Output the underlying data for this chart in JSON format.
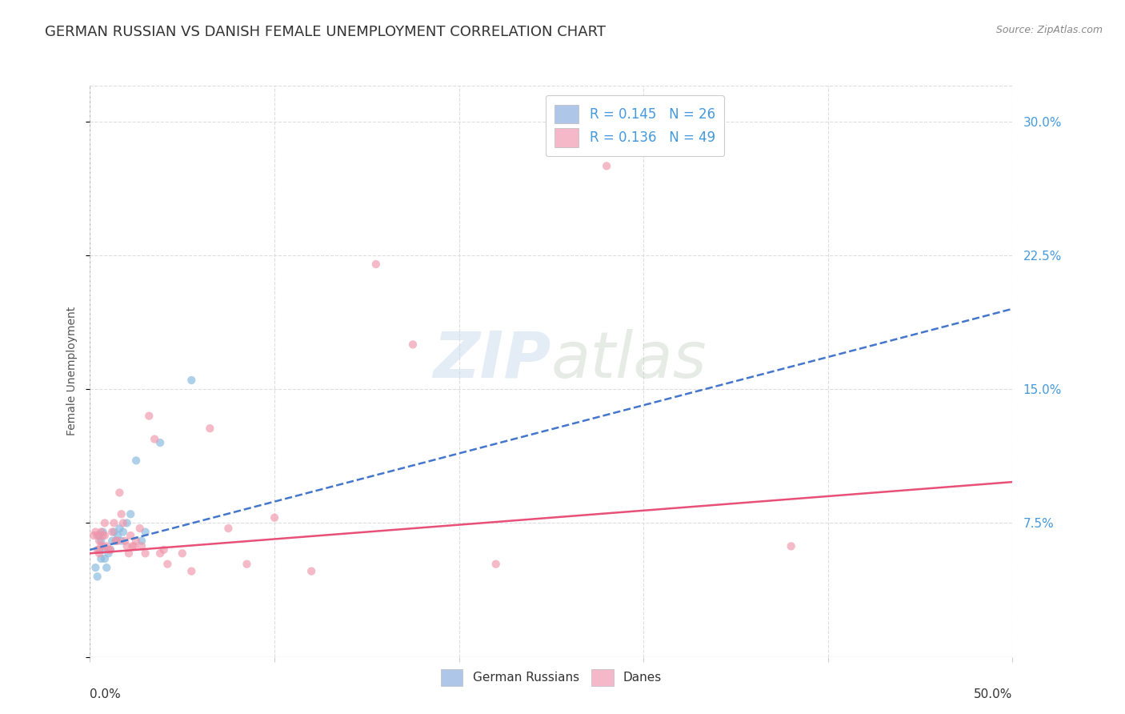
{
  "title": "GERMAN RUSSIAN VS DANISH FEMALE UNEMPLOYMENT CORRELATION CHART",
  "source": "Source: ZipAtlas.com",
  "ylabel": "Female Unemployment",
  "watermark": "ZIPatlas",
  "legend_entries": [
    {
      "label": "R = 0.145   N = 26",
      "color": "#aec6e8"
    },
    {
      "label": "R = 0.136   N = 49",
      "color": "#f4b8c8"
    }
  ],
  "legend_bottom": [
    {
      "label": "German Russians",
      "color": "#aec6e8"
    },
    {
      "label": "Danes",
      "color": "#f4b8c8"
    }
  ],
  "german_russians_x": [
    0.003,
    0.004,
    0.005,
    0.005,
    0.006,
    0.006,
    0.007,
    0.007,
    0.008,
    0.009,
    0.01,
    0.011,
    0.012,
    0.013,
    0.014,
    0.015,
    0.016,
    0.017,
    0.018,
    0.02,
    0.022,
    0.025,
    0.028,
    0.03,
    0.038,
    0.055
  ],
  "german_russians_y": [
    0.05,
    0.045,
    0.06,
    0.068,
    0.055,
    0.065,
    0.06,
    0.07,
    0.055,
    0.05,
    0.058,
    0.06,
    0.065,
    0.07,
    0.065,
    0.068,
    0.072,
    0.065,
    0.07,
    0.075,
    0.08,
    0.11,
    0.065,
    0.07,
    0.12,
    0.155
  ],
  "danes_x": [
    0.002,
    0.003,
    0.004,
    0.004,
    0.005,
    0.005,
    0.006,
    0.006,
    0.007,
    0.007,
    0.008,
    0.008,
    0.009,
    0.01,
    0.011,
    0.012,
    0.013,
    0.014,
    0.015,
    0.016,
    0.017,
    0.018,
    0.019,
    0.02,
    0.021,
    0.022,
    0.023,
    0.024,
    0.025,
    0.027,
    0.028,
    0.03,
    0.032,
    0.035,
    0.038,
    0.04,
    0.042,
    0.05,
    0.055,
    0.065,
    0.075,
    0.085,
    0.1,
    0.12,
    0.155,
    0.175,
    0.22,
    0.28,
    0.38
  ],
  "danes_y": [
    0.068,
    0.07,
    0.06,
    0.068,
    0.058,
    0.065,
    0.062,
    0.07,
    0.062,
    0.068,
    0.068,
    0.075,
    0.062,
    0.06,
    0.06,
    0.07,
    0.075,
    0.065,
    0.065,
    0.092,
    0.08,
    0.075,
    0.065,
    0.062,
    0.058,
    0.068,
    0.062,
    0.062,
    0.065,
    0.072,
    0.062,
    0.058,
    0.135,
    0.122,
    0.058,
    0.06,
    0.052,
    0.058,
    0.048,
    0.128,
    0.072,
    0.052,
    0.078,
    0.048,
    0.22,
    0.175,
    0.052,
    0.275,
    0.062
  ],
  "gr_line_x": [
    0.0,
    0.5
  ],
  "gr_line_y": [
    0.06,
    0.195
  ],
  "danes_line_x": [
    0.0,
    0.5
  ],
  "danes_line_y": [
    0.058,
    0.098
  ],
  "scatter_size": 55,
  "scatter_alpha": 0.65,
  "gr_dot_color": "#85b8de",
  "danes_dot_color": "#f095aa",
  "gr_line_color": "#4477cc",
  "danes_line_color": "#e85078",
  "background_color": "#ffffff",
  "plot_bg_color": "#ffffff",
  "grid_color": "#dddddd",
  "title_fontsize": 13,
  "axis_label_fontsize": 10,
  "tick_fontsize": 11,
  "right_tick_color": "#4499dd",
  "xlim": [
    0.0,
    0.5
  ],
  "ylim": [
    0.0,
    0.32
  ]
}
